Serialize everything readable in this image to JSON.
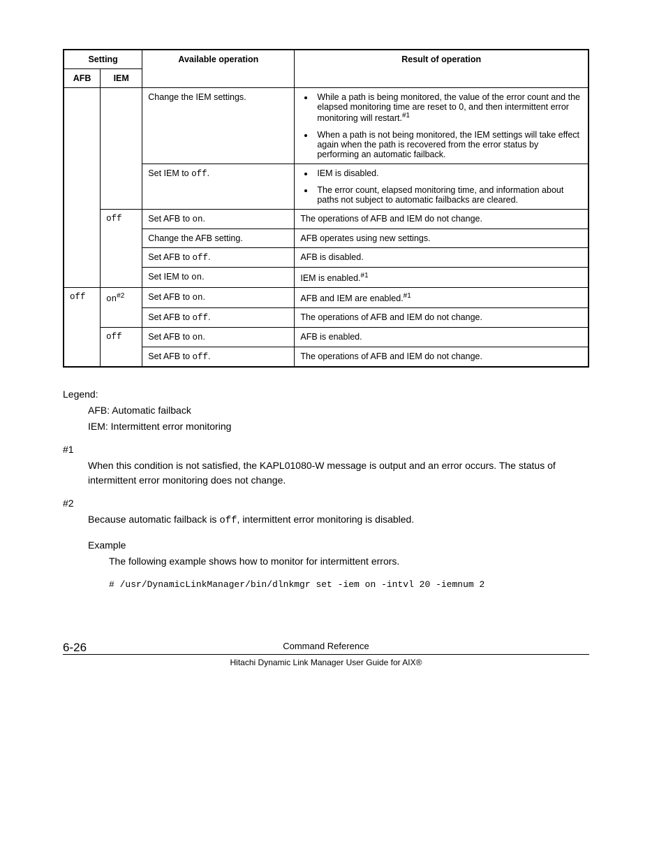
{
  "table": {
    "header": {
      "setting": "Setting",
      "afb": "AFB",
      "iem": "IEM",
      "available_op": "Available operation",
      "result": "Result of operation"
    },
    "rows": {
      "r1_op": "Change the IEM settings.",
      "r1_b1_a": "While a path is being monitored, the value of the error count and the elapsed monitoring time are reset to 0, and then intermittent error monitoring will restart.",
      "r1_b1_sup": "#1",
      "r1_b2": "When a path is not being monitored, the IEM settings will take effect again when the path is recovered from the error status by performing an automatic failback.",
      "r2_op_a": "Set IEM to ",
      "r2_op_b": "off",
      "r2_op_c": ".",
      "r2_b1": "IEM is disabled.",
      "r2_b2": "The error count, elapsed monitoring time, and information about paths not subject to automatic failbacks are cleared.",
      "iem_off": "off",
      "r3_op_a": "Set AFB to ",
      "r3_op_b": "on",
      "r3_op_c": ".",
      "r3_res": "The operations of AFB and IEM do not change.",
      "r4_op": "Change the AFB setting.",
      "r4_res": "AFB operates using new settings.",
      "r5_op_a": "Set AFB to ",
      "r5_op_b": "off",
      "r5_op_c": ".",
      "r5_res": "AFB is disabled.",
      "r6_op_a": "Set IEM to ",
      "r6_op_b": "on",
      "r6_op_c": ".",
      "r6_res_a": "IEM is enabled.",
      "r6_res_sup": "#1",
      "afb_off": "off",
      "iem_on": "on",
      "iem_on_sup": "#2",
      "r7_op_a": "Set AFB to ",
      "r7_op_b": "on",
      "r7_op_c": ".",
      "r7_res_a": "AFB and IEM are enabled.",
      "r7_res_sup": "#1",
      "r8_op_a": "Set AFB to ",
      "r8_op_b": "off",
      "r8_op_c": ".",
      "r8_res": "The operations of AFB and IEM do not change.",
      "iem_off2": "off",
      "r9_op_a": "Set AFB to ",
      "r9_op_b": "on",
      "r9_op_c": ".",
      "r9_res": "AFB is enabled.",
      "r10_op_a": "Set AFB to ",
      "r10_op_b": "off",
      "r10_op_c": ".",
      "r10_res": "The operations of AFB and IEM do not change."
    }
  },
  "legend": {
    "title": "Legend:",
    "afb": "AFB: Automatic failback",
    "iem": "IEM: Intermittent error monitoring"
  },
  "hash1": {
    "label": "#1",
    "text": "When this condition is not satisfied, the KAPL01080-W message is output and an error occurs. The status of intermittent error monitoring does not change."
  },
  "hash2": {
    "label": "#2",
    "text_a": "Because automatic failback is ",
    "text_b": "off",
    "text_c": ", intermittent error monitoring is disabled."
  },
  "example": {
    "label": "Example",
    "text": "The following example shows how to monitor for intermittent errors.",
    "code": "# /usr/DynamicLinkManager/bin/dlnkmgr set -iem on -intvl 20 -iemnum 2"
  },
  "footer": {
    "page_num": "6-26",
    "section": "Command Reference",
    "doc_title": "Hitachi Dynamic Link Manager User Guide for AIX®"
  }
}
